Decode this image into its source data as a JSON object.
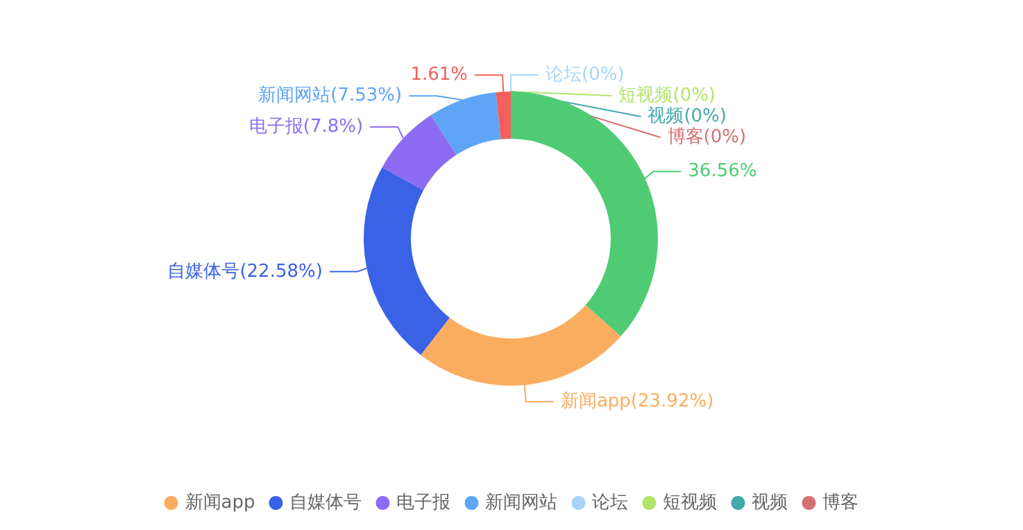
{
  "chart_data": {
    "type": "donut",
    "categories": [
      null,
      "新闻app",
      "自媒体号",
      "电子报",
      "新闻网站",
      null,
      "论坛",
      "短视频",
      "视频",
      "博客"
    ],
    "values": [
      36.56,
      23.92,
      22.58,
      7.8,
      7.53,
      1.61,
      0,
      0,
      0,
      0
    ],
    "colors": [
      "#4ecb73",
      "#fbad5f",
      "#3a62e6",
      "#8c6cf2",
      "#5ea5f6",
      "#f25f5c",
      "#a7d4fb",
      "#b1e46b",
      "#41a8ab",
      "#d66f6f"
    ],
    "value_labels": [
      "36.56%",
      "新闻app(23.92%)",
      "自媒体号(22.58%)",
      "电子报(7.8%)",
      "新闻网站(7.53%)",
      "1.61%",
      "论坛(0%)",
      "短视频(0%)",
      "视频(0%)",
      "博客(0%)"
    ],
    "legend": "bottom"
  }
}
